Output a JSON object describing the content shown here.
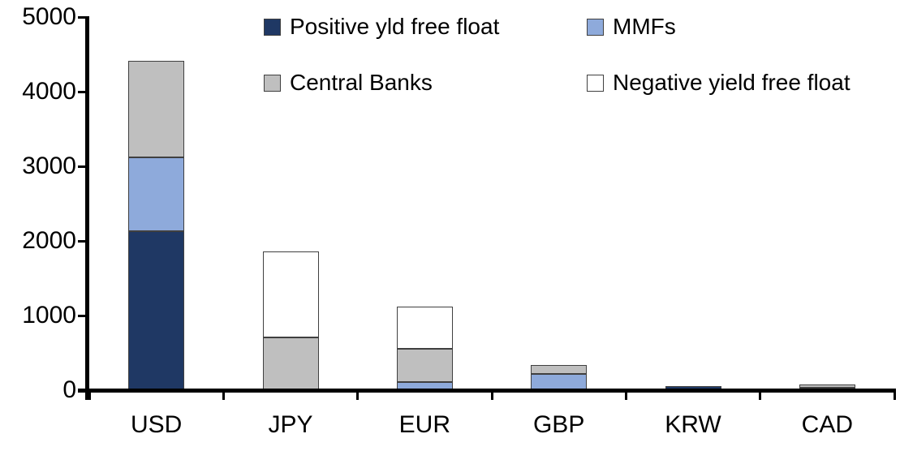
{
  "chart_data": {
    "type": "bar",
    "stacked": true,
    "title": "",
    "xlabel": "",
    "ylabel": "",
    "categories": [
      "USD",
      "JPY",
      "EUR",
      "GBP",
      "KRW",
      "CAD"
    ],
    "series": [
      {
        "name": "Positive yld free float",
        "color": "#1F3864",
        "values": [
          2130,
          0,
          0,
          0,
          50,
          35
        ]
      },
      {
        "name": "MMFs",
        "color": "#8EAADB",
        "values": [
          990,
          0,
          105,
          220,
          0,
          0
        ]
      },
      {
        "name": "Central Banks",
        "color": "#BFBFBF",
        "values": [
          1290,
          710,
          445,
          120,
          0,
          40
        ]
      },
      {
        "name": "Negative yield free float",
        "color": "#FFFFFF",
        "values": [
          0,
          1150,
          570,
          0,
          0,
          0
        ]
      }
    ],
    "totals": {
      "USD": 4410,
      "JPY": 1860,
      "EUR": 1120,
      "GBP": 340,
      "KRW": 50,
      "CAD": 75
    },
    "ylim": [
      0,
      5000
    ],
    "yticks": [
      "0",
      "1000",
      "2000",
      "3000",
      "4000",
      "5000"
    ],
    "grid": false,
    "legend_position": "top",
    "legend_rows": [
      [
        "Positive yld free float",
        "MMFs"
      ],
      [
        "Central Banks",
        "Negative yield free float"
      ]
    ]
  }
}
